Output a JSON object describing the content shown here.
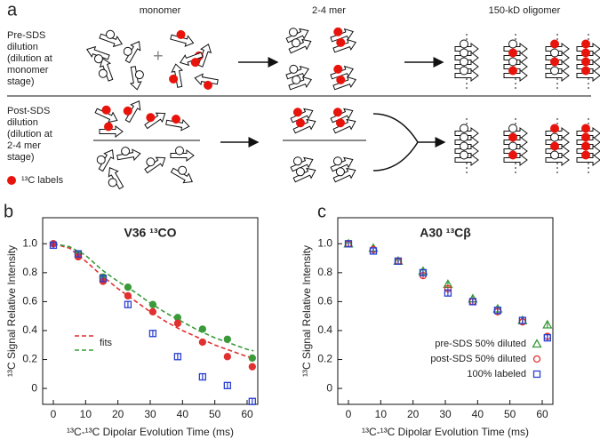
{
  "diagram": {
    "panel": "a",
    "stages": [
      "monomer",
      "2-4 mer",
      "150-kD oligomer"
    ],
    "pre_label": [
      "Pre-SDS",
      "dilution",
      "(dilution at",
      "monomer",
      "stage)"
    ],
    "post_label": [
      "Post-SDS",
      "dilution",
      "(dilution at",
      "2-4 mer",
      "stage)"
    ],
    "legend": "¹³C labels"
  },
  "chart_data": [
    {
      "type": "scatter",
      "panel": "b",
      "title": "V36 ¹³CO",
      "ylabel": "¹³C Signal Relative Intensity",
      "xlabel": "¹³C-¹³C Dipolar Evolution Time (ms)",
      "xlim": [
        -3.3,
        63.3
      ],
      "ylim": [
        -0.11,
        1.18
      ],
      "xticks": [
        0,
        10,
        20,
        30,
        40,
        50,
        60
      ],
      "yticks": [
        0,
        0.2,
        0.4,
        0.6,
        0.8,
        {
          "value": 1,
          "label": "1.0"
        }
      ],
      "x": [
        0,
        7.7,
        15.4,
        23.1,
        30.8,
        38.5,
        46.2,
        53.9,
        61.6
      ],
      "series": [
        {
          "color": "#3a9a3a",
          "marker": "circle",
          "filled": true,
          "error": 0.02,
          "values": [
            1.0,
            0.93,
            0.77,
            0.7,
            0.58,
            0.49,
            0.41,
            0.34,
            0.21
          ]
        },
        {
          "color": "#e03030",
          "marker": "circle",
          "filled": true,
          "error": 0.02,
          "values": [
            1.0,
            0.91,
            0.74,
            0.64,
            0.53,
            0.45,
            0.32,
            0.22,
            0.15
          ]
        },
        {
          "color": "#2a3fd0",
          "marker": "square",
          "filled": false,
          "error": 0.02,
          "values": [
            0.99,
            0.93,
            0.76,
            0.58,
            0.38,
            0.22,
            0.08,
            0.02,
            -0.09
          ]
        }
      ],
      "fits": {
        "label": "fits",
        "x": [
          0,
          5,
          10,
          15,
          20,
          25,
          30,
          35,
          40,
          45,
          50,
          55,
          60,
          62
        ],
        "curves": [
          {
            "color": "#e03030",
            "values": [
              1.0,
              0.97,
              0.88,
              0.78,
              0.69,
              0.61,
              0.53,
              0.46,
              0.4,
              0.35,
              0.3,
              0.26,
              0.22,
              0.21
            ]
          },
          {
            "color": "#3a9a3a",
            "values": [
              1.0,
              0.98,
              0.92,
              0.82,
              0.74,
              0.67,
              0.59,
              0.52,
              0.46,
              0.4,
              0.35,
              0.31,
              0.27,
              0.26
            ]
          }
        ]
      }
    },
    {
      "type": "scatter",
      "panel": "c",
      "title": "A30 ¹³Cβ",
      "ylabel": "¹³C Signal Relative Intensity",
      "xlabel": "¹³C-¹³C Dipolar Evolution Time (ms)",
      "xlim": [
        -3.3,
        63.3
      ],
      "ylim": [
        -0.11,
        1.18
      ],
      "xticks": [
        0,
        10,
        20,
        30,
        40,
        50,
        60
      ],
      "yticks": [
        0,
        0.2,
        0.4,
        0.6,
        0.8,
        {
          "value": 1,
          "label": "1.0"
        }
      ],
      "legend": "lower right",
      "x": [
        0,
        7.7,
        15.4,
        23.1,
        30.8,
        38.5,
        46.2,
        53.9,
        61.6
      ],
      "series": [
        {
          "name": "pre-SDS 50% diluted",
          "color": "#3a9a3a",
          "marker": "triangle",
          "filled": false,
          "error": 0.02,
          "values": [
            1.0,
            0.97,
            0.88,
            0.81,
            0.72,
            0.62,
            0.55,
            0.47,
            0.44
          ]
        },
        {
          "name": "post-SDS 50% diluted",
          "color": "#e03030",
          "marker": "circle",
          "filled": false,
          "error": 0.02,
          "values": [
            1.0,
            0.96,
            0.88,
            0.78,
            0.69,
            0.6,
            0.53,
            0.46,
            0.36
          ]
        },
        {
          "name": "100% labeled",
          "color": "#2a3fd0",
          "marker": "square",
          "filled": false,
          "error": 0.02,
          "values": [
            1.0,
            0.95,
            0.88,
            0.8,
            0.66,
            0.6,
            0.54,
            0.47,
            0.35
          ]
        }
      ]
    }
  ]
}
